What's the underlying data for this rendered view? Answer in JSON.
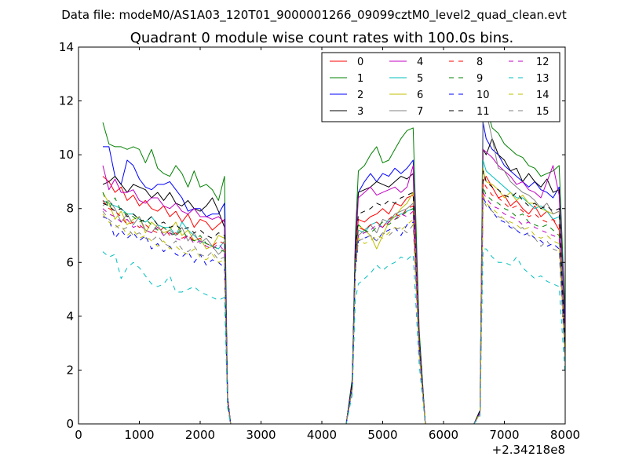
{
  "chart_data": {
    "type": "line",
    "suptitle": "Data file: modeM0/AS1A03_120T01_9000001266_09099cztM0_level2_quad_clean.evt",
    "title": "Quadrant 0 module wise count rates with 100.0s bins.",
    "xlabel": "",
    "ylabel": "",
    "x_offset_label": "+2.34218e8",
    "xlim": [
      0,
      8000
    ],
    "ylim": [
      0,
      14
    ],
    "xticks": [
      0,
      1000,
      2000,
      3000,
      4000,
      5000,
      6000,
      7000,
      8000
    ],
    "yticks": [
      0,
      2,
      4,
      6,
      8,
      10,
      12,
      14
    ],
    "xtick_labels": [
      "0",
      "1000",
      "2000",
      "3000",
      "4000",
      "5000",
      "6000",
      "7000",
      "8000"
    ],
    "ytick_labels": [
      "0",
      "2",
      "4",
      "6",
      "8",
      "10",
      "12",
      "14"
    ],
    "legend_position": "top-right",
    "x": [
      400,
      500,
      600,
      700,
      800,
      900,
      1000,
      1100,
      1200,
      1300,
      1400,
      1500,
      1600,
      1700,
      1800,
      1900,
      2000,
      2100,
      2200,
      2300,
      2400,
      2450,
      2500,
      4400,
      4500,
      4550,
      4600,
      4700,
      4800,
      4900,
      5000,
      5100,
      5200,
      5300,
      5400,
      5500,
      5600,
      5700,
      6500,
      6600,
      6650,
      6700,
      6800,
      6900,
      7000,
      7100,
      7200,
      7300,
      7400,
      7500,
      7600,
      7700,
      7800,
      7900,
      8000
    ],
    "series": [
      {
        "name": "0",
        "color": "#ff0000",
        "dash": "solid",
        "values": [
          9.2,
          9.0,
          8.6,
          8.8,
          8.3,
          8.5,
          8.1,
          8.3,
          8.0,
          7.9,
          8.1,
          7.7,
          7.9,
          7.5,
          7.8,
          7.3,
          7.6,
          7.5,
          7.2,
          7.4,
          7.6,
          1.0,
          0,
          0,
          1.5,
          6.5,
          7.6,
          7.5,
          7.7,
          7.8,
          8.0,
          7.8,
          8.2,
          8.1,
          8.4,
          8.5,
          3.0,
          0,
          0,
          0.4,
          9.0,
          9.2,
          8.8,
          8.4,
          8.5,
          8.1,
          8.3,
          8.0,
          7.8,
          8.1,
          7.7,
          7.9,
          7.6,
          7.2,
          2.5
        ]
      },
      {
        "name": "1",
        "color": "#008000",
        "dash": "solid",
        "values": [
          11.2,
          10.4,
          10.3,
          10.3,
          10.2,
          10.3,
          10.2,
          9.7,
          10.2,
          9.5,
          9.3,
          9.2,
          9.6,
          9.3,
          8.8,
          9.4,
          8.8,
          8.9,
          8.7,
          8.3,
          9.2,
          1.0,
          0,
          0,
          1.7,
          6.9,
          9.4,
          9.6,
          10.0,
          10.3,
          9.7,
          9.8,
          10.2,
          10.6,
          10.9,
          11.0,
          3.5,
          0,
          0,
          0.5,
          12.2,
          11.8,
          11.0,
          10.8,
          10.4,
          10.2,
          10.0,
          9.9,
          9.6,
          9.5,
          9.2,
          9.3,
          9.4,
          9.6,
          4.0
        ]
      },
      {
        "name": "2",
        "color": "#0000ff",
        "dash": "solid",
        "values": [
          10.3,
          10.3,
          9.2,
          8.9,
          9.8,
          9.6,
          9.1,
          8.8,
          8.7,
          8.9,
          8.9,
          9.0,
          8.7,
          8.4,
          7.9,
          8.0,
          8.0,
          7.7,
          7.8,
          7.8,
          8.2,
          1.0,
          0,
          0,
          1.6,
          6.6,
          8.6,
          9.0,
          9.3,
          9.0,
          9.3,
          9.2,
          9.5,
          9.3,
          9.5,
          9.8,
          3.2,
          0,
          0,
          0.5,
          11.2,
          10.6,
          10.2,
          10.0,
          9.6,
          9.4,
          9.2,
          9.0,
          8.8,
          9.0,
          8.7,
          8.6,
          8.4,
          8.8,
          3.5
        ]
      },
      {
        "name": "3",
        "color": "#000000",
        "dash": "solid",
        "values": [
          8.9,
          9.0,
          9.2,
          8.9,
          8.6,
          8.9,
          8.8,
          8.7,
          8.4,
          8.6,
          8.3,
          8.6,
          8.2,
          8.1,
          8.3,
          8.0,
          7.9,
          8.1,
          8.4,
          7.9,
          7.3,
          1.0,
          0,
          0,
          1.6,
          6.4,
          8.6,
          8.7,
          8.8,
          9.0,
          8.9,
          8.8,
          9.0,
          9.2,
          9.1,
          9.3,
          3.1,
          0,
          0,
          0.5,
          10.2,
          10.0,
          10.6,
          10.0,
          9.8,
          9.4,
          9.5,
          9.0,
          9.3,
          9.0,
          8.8,
          9.1,
          8.6,
          8.7,
          3.0
        ]
      },
      {
        "name": "4",
        "color": "#c000c0",
        "dash": "solid",
        "values": [
          9.6,
          8.7,
          9.1,
          8.6,
          8.6,
          8.7,
          8.3,
          8.2,
          8.4,
          8.4,
          8.1,
          8.0,
          8.2,
          7.9,
          7.8,
          8.0,
          7.7,
          7.7,
          7.6,
          7.7,
          7.5,
          1.0,
          0,
          0,
          1.5,
          6.3,
          8.4,
          8.6,
          8.8,
          8.5,
          8.6,
          8.7,
          8.8,
          8.6,
          8.8,
          9.6,
          3.0,
          0,
          0,
          0.4,
          10.2,
          10.1,
          9.9,
          9.6,
          9.4,
          9.2,
          8.9,
          9.0,
          8.7,
          8.6,
          8.4,
          9.0,
          9.6,
          8.5,
          3.2
        ]
      },
      {
        "name": "5",
        "color": "#00bfbf",
        "dash": "solid",
        "values": [
          8.3,
          8.2,
          8.1,
          8.0,
          7.8,
          7.8,
          7.6,
          7.5,
          7.7,
          7.4,
          7.3,
          7.3,
          7.0,
          7.5,
          7.2,
          7.0,
          6.8,
          6.7,
          6.6,
          6.5,
          6.8,
          0.9,
          0,
          0,
          1.4,
          6.0,
          7.2,
          7.1,
          7.4,
          7.5,
          7.3,
          7.6,
          7.7,
          7.8,
          7.9,
          8.0,
          2.8,
          0,
          0,
          0.4,
          9.8,
          9.4,
          9.2,
          9.0,
          8.8,
          8.6,
          8.4,
          8.4,
          8.2,
          8.0,
          8.1,
          7.9,
          7.6,
          7.7,
          2.6
        ]
      },
      {
        "name": "6",
        "color": "#bfbf00",
        "dash": "solid",
        "values": [
          8.6,
          8.2,
          7.6,
          7.9,
          7.4,
          7.6,
          7.7,
          7.1,
          7.5,
          7.3,
          7.1,
          7.2,
          7.5,
          7.0,
          7.2,
          6.8,
          6.9,
          6.5,
          6.6,
          7.0,
          6.9,
          0.9,
          0,
          0,
          1.4,
          6.0,
          7.4,
          7.2,
          7.0,
          6.5,
          7.0,
          7.5,
          7.7,
          8.0,
          8.2,
          8.6,
          2.9,
          0,
          0,
          0.4,
          9.5,
          9.0,
          8.9,
          8.7,
          8.4,
          8.6,
          8.3,
          8.5,
          8.2,
          8.2,
          8.0,
          7.9,
          7.8,
          7.9,
          2.8
        ]
      },
      {
        "name": "7",
        "color": "#808080",
        "dash": "solid",
        "values": [
          8.1,
          8.3,
          8.0,
          7.5,
          7.8,
          7.4,
          7.7,
          7.2,
          7.1,
          7.4,
          7.0,
          7.2,
          7.0,
          7.3,
          6.8,
          7.1,
          6.7,
          6.9,
          6.6,
          6.3,
          6.5,
          0.9,
          0,
          0,
          1.4,
          5.9,
          7.0,
          7.2,
          7.4,
          7.1,
          7.6,
          7.5,
          7.8,
          7.9,
          8.0,
          8.2,
          2.8,
          0,
          0,
          0.4,
          12.0,
          11.6,
          10.6,
          9.5,
          9.4,
          9.0,
          8.8,
          8.6,
          8.5,
          8.3,
          8.0,
          8.2,
          7.8,
          7.9,
          2.8
        ]
      },
      {
        "name": "8",
        "color": "#ff0000",
        "dash": "dashed",
        "values": [
          8.3,
          8.0,
          7.9,
          7.7,
          7.4,
          7.5,
          7.3,
          7.4,
          7.2,
          7.1,
          7.3,
          7.0,
          7.1,
          6.9,
          7.0,
          6.8,
          6.9,
          6.7,
          6.6,
          6.8,
          6.7,
          0.9,
          0,
          0,
          1.4,
          6.0,
          7.3,
          7.2,
          7.4,
          7.5,
          7.3,
          7.6,
          7.8,
          7.7,
          8.0,
          8.1,
          2.8,
          0,
          0,
          0.4,
          9.0,
          8.8,
          8.5,
          8.4,
          8.2,
          8.0,
          8.1,
          7.9,
          7.7,
          7.8,
          7.6,
          7.5,
          7.6,
          7.4,
          2.6
        ]
      },
      {
        "name": "9",
        "color": "#008000",
        "dash": "dashed",
        "values": [
          8.6,
          8.0,
          8.4,
          7.9,
          7.8,
          7.7,
          7.5,
          7.6,
          7.4,
          7.2,
          7.3,
          7.1,
          7.0,
          7.2,
          6.9,
          6.8,
          7.0,
          6.7,
          6.6,
          6.5,
          6.4,
          0.9,
          0,
          0,
          1.4,
          6.0,
          7.4,
          7.2,
          7.1,
          7.3,
          7.5,
          7.4,
          7.6,
          7.7,
          7.9,
          8.0,
          2.8,
          0,
          0,
          0.4,
          8.8,
          8.5,
          8.3,
          8.2,
          8.0,
          7.9,
          7.7,
          7.8,
          7.5,
          7.4,
          7.3,
          7.4,
          7.2,
          7.0,
          2.5
        ]
      },
      {
        "name": "10",
        "color": "#0000ff",
        "dash": "dashed",
        "values": [
          7.7,
          7.6,
          6.9,
          7.2,
          6.9,
          7.1,
          6.8,
          7.0,
          6.5,
          6.7,
          6.4,
          6.6,
          6.3,
          6.2,
          6.4,
          6.0,
          6.3,
          5.9,
          6.1,
          6.0,
          5.8,
          0.8,
          0,
          0,
          1.3,
          5.6,
          6.8,
          6.9,
          7.0,
          6.8,
          7.1,
          7.2,
          7.3,
          7.0,
          7.4,
          7.5,
          2.7,
          0,
          0,
          0.4,
          8.4,
          8.2,
          7.9,
          7.6,
          7.5,
          7.3,
          7.2,
          7.0,
          7.1,
          6.9,
          6.8,
          6.6,
          6.7,
          6.5,
          2.4
        ]
      },
      {
        "name": "11",
        "color": "#000000",
        "dash": "dashed",
        "values": [
          8.2,
          8.1,
          7.9,
          8.0,
          7.7,
          7.8,
          7.6,
          7.5,
          7.7,
          7.4,
          7.5,
          7.3,
          7.4,
          7.2,
          7.3,
          7.1,
          7.2,
          7.0,
          6.9,
          7.1,
          7.0,
          0.9,
          0,
          0,
          1.5,
          6.2,
          7.8,
          7.9,
          8.0,
          8.2,
          8.1,
          8.3,
          8.2,
          8.4,
          8.5,
          8.6,
          2.9,
          0,
          0,
          0.4,
          9.4,
          9.0,
          8.8,
          8.7,
          8.5,
          8.4,
          8.6,
          8.3,
          8.1,
          8.2,
          8.0,
          8.1,
          7.9,
          8.0,
          2.7
        ]
      },
      {
        "name": "12",
        "color": "#c000c0",
        "dash": "dashed",
        "values": [
          8.0,
          7.8,
          7.7,
          7.5,
          7.6,
          7.3,
          7.4,
          7.2,
          7.1,
          7.3,
          7.0,
          7.1,
          6.9,
          6.8,
          7.0,
          6.7,
          6.8,
          6.6,
          6.5,
          6.7,
          6.4,
          0.9,
          0,
          0,
          1.4,
          5.8,
          7.0,
          7.1,
          7.2,
          7.4,
          7.3,
          7.5,
          7.6,
          7.8,
          7.7,
          7.9,
          2.7,
          0,
          0,
          0.4,
          8.6,
          8.4,
          8.1,
          8.0,
          7.8,
          7.7,
          7.6,
          7.4,
          7.5,
          7.3,
          7.2,
          7.1,
          7.0,
          6.9,
          2.5
        ]
      },
      {
        "name": "13",
        "color": "#00bfbf",
        "dash": "dashed",
        "values": [
          6.4,
          6.2,
          6.3,
          5.4,
          5.8,
          6.0,
          5.8,
          5.5,
          5.2,
          5.1,
          5.2,
          5.5,
          4.9,
          4.9,
          5.0,
          5.1,
          4.9,
          4.8,
          4.7,
          4.6,
          4.7,
          0.6,
          0,
          0,
          1.1,
          4.6,
          5.2,
          5.4,
          5.6,
          5.9,
          5.7,
          5.9,
          6.0,
          6.2,
          6.1,
          6.3,
          2.2,
          0,
          0,
          0.3,
          6.5,
          6.5,
          6.2,
          6.0,
          6.0,
          5.9,
          6.2,
          5.8,
          5.6,
          5.4,
          5.5,
          5.3,
          5.2,
          5.1,
          1.8
        ]
      },
      {
        "name": "14",
        "color": "#bfbf00",
        "dash": "dashed",
        "values": [
          7.8,
          7.5,
          7.3,
          7.4,
          7.0,
          7.2,
          6.9,
          7.0,
          6.8,
          6.6,
          6.8,
          6.5,
          6.6,
          6.4,
          6.3,
          6.5,
          6.2,
          6.1,
          6.3,
          6.0,
          6.1,
          0.8,
          0,
          0,
          1.3,
          5.6,
          6.9,
          6.7,
          6.8,
          7.0,
          6.9,
          7.1,
          7.3,
          7.2,
          7.4,
          7.6,
          2.6,
          0,
          0,
          0.4,
          8.5,
          8.2,
          8.0,
          7.8,
          7.6,
          7.5,
          7.4,
          7.2,
          7.3,
          7.0,
          6.9,
          7.0,
          6.8,
          6.7,
          2.4
        ]
      },
      {
        "name": "15",
        "color": "#808080",
        "dash": "dashed",
        "values": [
          7.9,
          7.6,
          7.4,
          7.2,
          7.3,
          7.0,
          7.1,
          6.9,
          6.8,
          7.0,
          6.7,
          6.6,
          6.8,
          6.5,
          6.4,
          6.6,
          6.3,
          6.2,
          6.4,
          6.1,
          6.2,
          0.8,
          0,
          0,
          1.3,
          5.7,
          6.8,
          6.9,
          7.0,
          6.8,
          7.1,
          7.0,
          7.2,
          7.3,
          7.1,
          7.4,
          2.6,
          0,
          0,
          0.4,
          8.3,
          8.1,
          7.9,
          7.7,
          7.6,
          7.4,
          7.2,
          7.3,
          7.0,
          6.9,
          6.6,
          6.8,
          6.5,
          6.4,
          2.3
        ]
      }
    ]
  }
}
